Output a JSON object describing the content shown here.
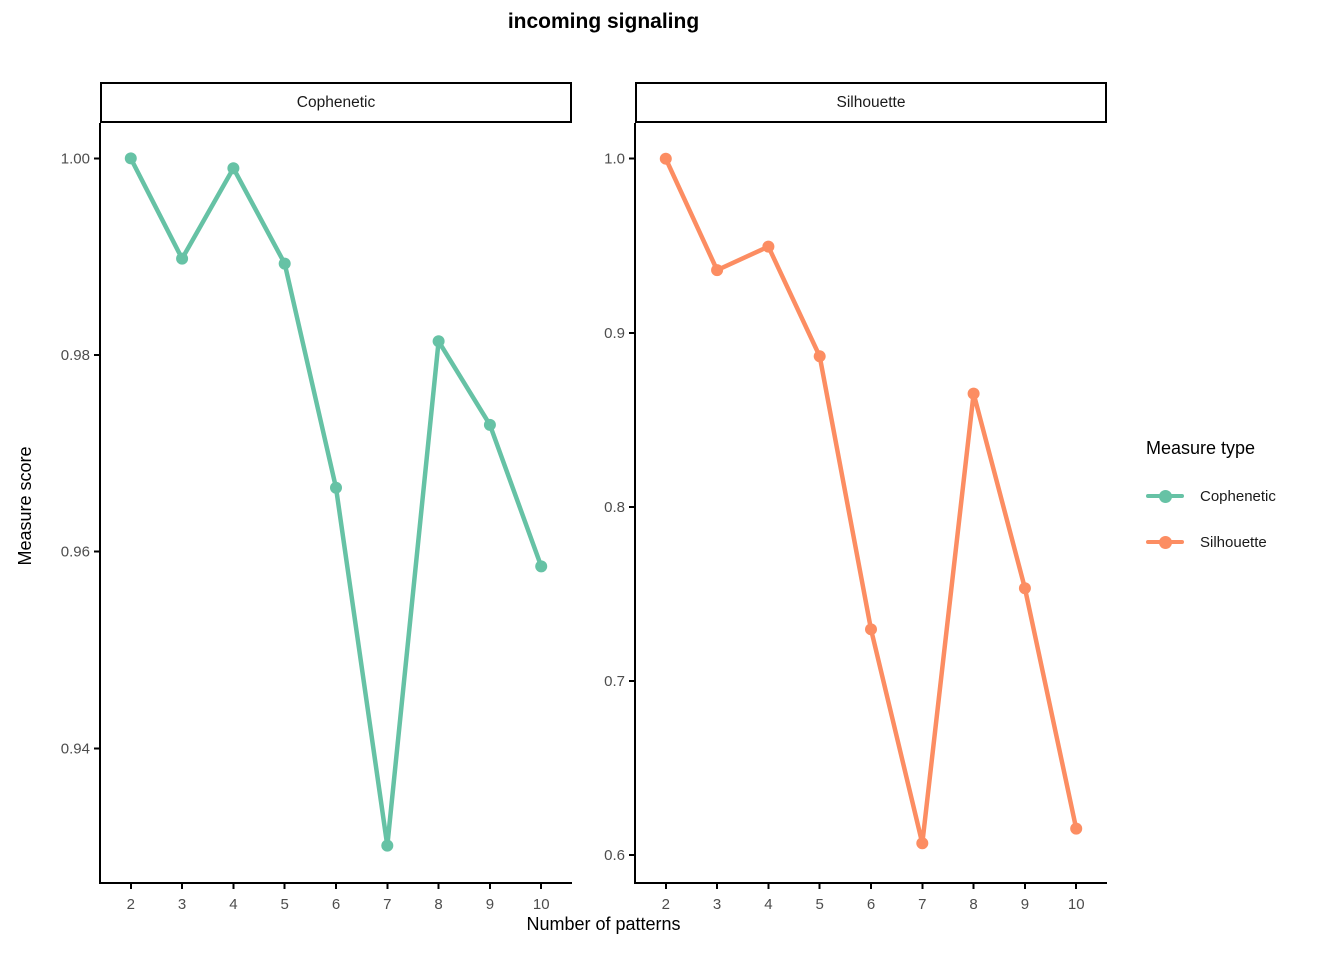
{
  "title": "incoming signaling",
  "axes": {
    "x_label": "Number of patterns",
    "y_label": "Measure score"
  },
  "legend": {
    "title": "Measure type",
    "items": [
      {
        "label": "Cophenetic",
        "color": "#66C2A5"
      },
      {
        "label": "Silhouette",
        "color": "#FC8D62"
      }
    ]
  },
  "chart_data": {
    "type": "line",
    "title": "incoming signaling",
    "xlabel": "Number of patterns",
    "ylabel": "Measure score",
    "grid": false,
    "legend_position": "right",
    "x": [
      2,
      3,
      4,
      5,
      6,
      7,
      8,
      9,
      10
    ],
    "x_ticks": [
      2,
      3,
      4,
      5,
      6,
      7,
      8,
      9,
      10
    ],
    "xlim": [
      1.4,
      10.6
    ],
    "point_color_cophenetic": "#66C2A5",
    "point_color_silhouette": "#FC8D62",
    "tick_label_color": "#4D4D4D",
    "axis_line_color": "#000000",
    "facets": [
      {
        "label": "Cophenetic",
        "series": "Cophenetic",
        "color": "#66C2A5",
        "values": [
          1.0,
          0.9898,
          0.999,
          0.9893,
          0.9665,
          0.9301,
          0.9814,
          0.9729,
          0.9585
        ],
        "ylim": [
          0.9263,
          1.0036
        ],
        "y_ticks": [
          1.0,
          0.98,
          0.96,
          0.94
        ],
        "y_tick_labels": [
          "1.00",
          "0.98",
          "0.96",
          "0.94"
        ]
      },
      {
        "label": "Silhouette",
        "series": "Silhouette",
        "color": "#FC8D62",
        "values": [
          1.0,
          0.936,
          0.9495,
          0.8865,
          0.7297,
          0.6068,
          0.8651,
          0.7533,
          0.6152
        ],
        "ylim": [
          0.584,
          1.0205
        ],
        "y_ticks": [
          1.0,
          0.9,
          0.8,
          0.7,
          0.6
        ],
        "y_tick_labels": [
          "1.0",
          "0.9",
          "0.8",
          "0.7",
          "0.6"
        ]
      }
    ]
  }
}
